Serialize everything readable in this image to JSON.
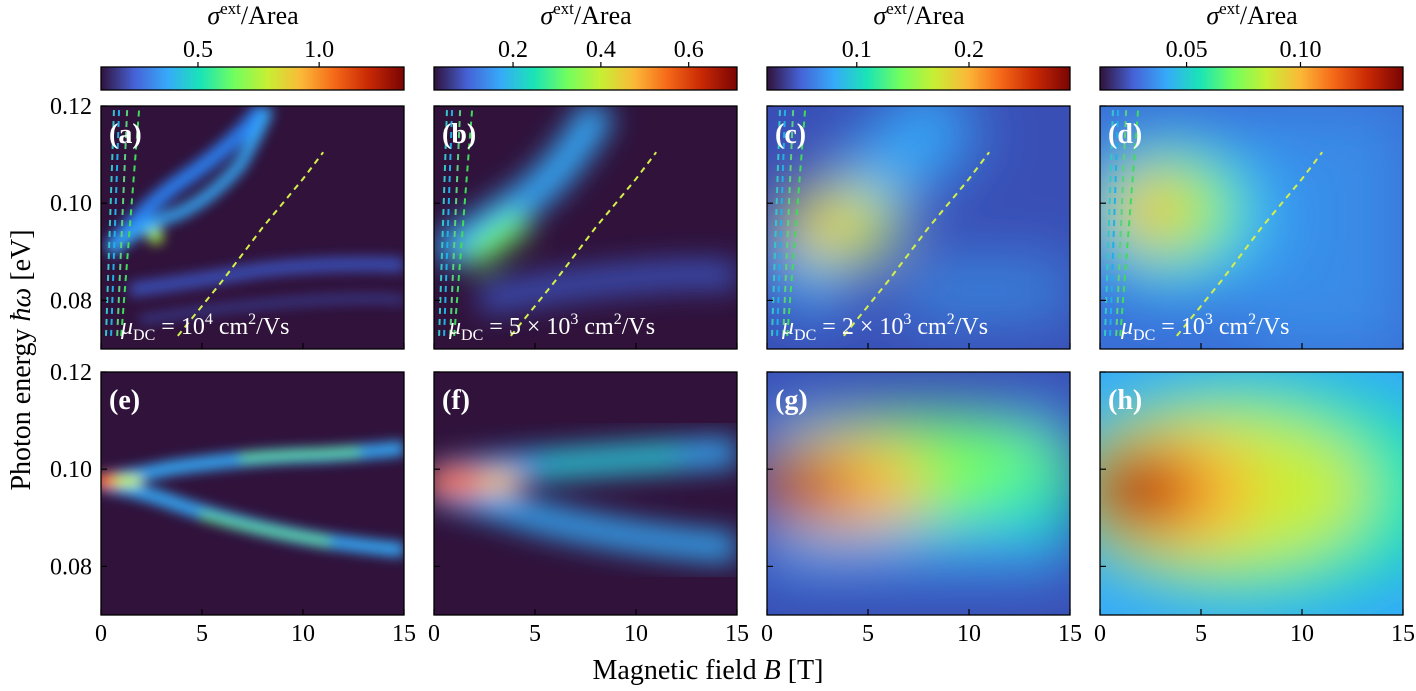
{
  "chart_data": {
    "type": "heatmap",
    "x_axis_label": "Magnetic field B [T]",
    "y_axis_label": "Photon energy ħω [eV]",
    "xlim": [
      0,
      15
    ],
    "ylim": [
      0.07,
      0.12
    ],
    "x_ticks": [
      "0",
      "5",
      "10",
      "15"
    ],
    "y_ticks": [
      "0.08",
      "0.10",
      "0.12"
    ],
    "colormap": [
      "#30123b",
      "#4662d7",
      "#36aaf9",
      "#1ae4b6",
      "#72fe5e",
      "#c7ef34",
      "#fbb938",
      "#f56918",
      "#ca2a04",
      "#7a0403"
    ],
    "panels": [
      {
        "label": "(a)",
        "row": 1,
        "col": 1,
        "annotation": "μDC = 10⁴ cm²/Vs",
        "peak_energy_eV": 0.097
      },
      {
        "label": "(b)",
        "row": 1,
        "col": 2,
        "annotation": "μDC = 5 × 10³ cm²/Vs",
        "peak_energy_eV": 0.097
      },
      {
        "label": "(c)",
        "row": 1,
        "col": 3,
        "annotation": "μDC = 2 × 10³ cm²/Vs",
        "peak_energy_eV": 0.097
      },
      {
        "label": "(d)",
        "row": 1,
        "col": 4,
        "annotation": "μDC = 10³ cm²/Vs",
        "peak_energy_eV": 0.097
      },
      {
        "label": "(e)",
        "row": 2,
        "col": 1,
        "peak_energy_eV": 0.097
      },
      {
        "label": "(f)",
        "row": 2,
        "col": 2,
        "peak_energy_eV": 0.097
      },
      {
        "label": "(g)",
        "row": 2,
        "col": 3,
        "peak_energy_eV": 0.097
      },
      {
        "label": "(h)",
        "row": 2,
        "col": 4,
        "peak_energy_eV": 0.097
      }
    ],
    "colorbars": [
      {
        "title": "σext/Area",
        "ticks": [
          "0.5",
          "1.0"
        ],
        "tick_values": [
          0.5,
          1.0
        ],
        "range": [
          0.1,
          1.35
        ]
      },
      {
        "title": "σext/Area",
        "ticks": [
          "0.2",
          "0.4",
          "0.6"
        ],
        "tick_values": [
          0.2,
          0.4,
          0.6
        ],
        "range": [
          0.02,
          0.71
        ]
      },
      {
        "title": "σext/Area",
        "ticks": [
          "0.1",
          "0.2"
        ],
        "tick_values": [
          0.1,
          0.2
        ],
        "range": [
          0.02,
          0.29
        ]
      },
      {
        "title": "σext/Area",
        "ticks": [
          "0.05",
          "0.10"
        ],
        "tick_values": [
          0.05,
          0.1
        ],
        "range": [
          0.012,
          0.145
        ]
      }
    ],
    "dashed_guides": [
      {
        "name": "",
        "color": "#d4f04a",
        "points": [
          [
            3.8,
            0.0727
          ],
          [
            6,
            0.084
          ],
          [
            8,
            0.095
          ],
          [
            10,
            0.105
          ],
          [
            11,
            0.1105
          ]
        ]
      },
      {
        "name": "",
        "color": "#34c6c8",
        "points": [
          [
            0.25,
            0.0727
          ],
          [
            0.65,
            0.12
          ]
        ]
      },
      {
        "name": "",
        "color": "#1fb0e8",
        "points": [
          [
            0.5,
            0.0727
          ],
          [
            0.9,
            0.12
          ]
        ]
      },
      {
        "name": "",
        "color": "#5ad080",
        "points": [
          [
            0.8,
            0.0727
          ],
          [
            1.3,
            0.12
          ]
        ]
      },
      {
        "name": "",
        "color": "#3edc5a",
        "points": [
          [
            1.0,
            0.0727
          ],
          [
            1.9,
            0.12
          ]
        ]
      }
    ]
  }
}
